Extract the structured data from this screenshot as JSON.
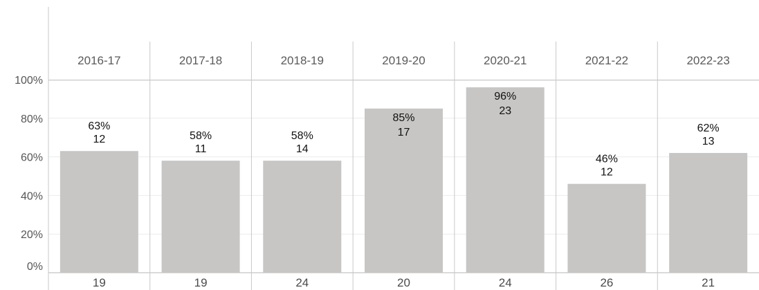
{
  "chart_data": {
    "type": "bar",
    "categories": [
      "2016-17",
      "2017-18",
      "2018-19",
      "2019-20",
      "2020-21",
      "2021-22",
      "2022-23"
    ],
    "values": [
      63,
      58,
      58,
      85,
      96,
      46,
      62
    ],
    "value_labels": [
      "63%",
      "58%",
      "58%",
      "85%",
      "96%",
      "46%",
      "62%"
    ],
    "counts": [
      12,
      11,
      14,
      17,
      23,
      12,
      13
    ],
    "totals": [
      19,
      19,
      24,
      20,
      24,
      26,
      21
    ],
    "ylim": [
      0,
      100
    ],
    "yticks": [
      0,
      20,
      40,
      60,
      80,
      100
    ],
    "ytick_labels": [
      "0%",
      "20%",
      "40%",
      "60%",
      "80%",
      "100%"
    ],
    "grid": true,
    "colors": {
      "bar": "#c7c6c5",
      "grid": "#ececec",
      "divider": "#c8c8c8",
      "baseline": "#b4b4b4"
    }
  }
}
